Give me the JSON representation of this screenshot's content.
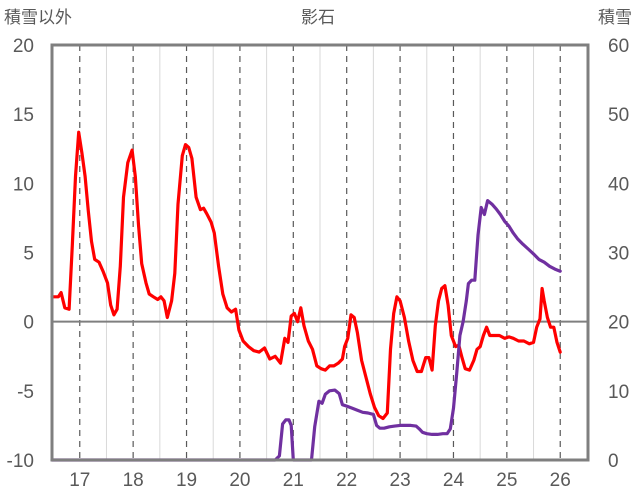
{
  "chart_data": {
    "type": "line",
    "title": "影石",
    "ylabel_left": "積雪以外",
    "ylabel_right": "積雪",
    "x_ticks": [
      "17",
      "18",
      "19",
      "20",
      "21",
      "22",
      "23",
      "24",
      "25",
      "26"
    ],
    "xlim": [
      16.48,
      26.52
    ],
    "ylim_left": [
      -10,
      20
    ],
    "ylim_right": [
      0,
      60
    ],
    "y_ticks_left": [
      "20",
      "15",
      "10",
      "5",
      "0",
      "-5",
      "-10"
    ],
    "y_ticks_right": [
      "60",
      "50",
      "40",
      "30",
      "20",
      "10",
      "0"
    ],
    "grid": "dashed vertical at each day",
    "zero_line_left": 0,
    "series": [
      {
        "axis": "left",
        "color": "#ff0000",
        "points": [
          [
            16.48,
            1.8
          ],
          [
            16.6,
            1.8
          ],
          [
            16.65,
            2.1
          ],
          [
            16.72,
            1.0
          ],
          [
            16.8,
            0.9
          ],
          [
            16.86,
            5.5
          ],
          [
            16.92,
            10.5
          ],
          [
            16.98,
            13.7
          ],
          [
            17.04,
            12.2
          ],
          [
            17.1,
            10.5
          ],
          [
            17.16,
            8.0
          ],
          [
            17.22,
            5.8
          ],
          [
            17.28,
            4.5
          ],
          [
            17.36,
            4.3
          ],
          [
            17.44,
            3.6
          ],
          [
            17.52,
            2.8
          ],
          [
            17.58,
            1.2
          ],
          [
            17.64,
            0.5
          ],
          [
            17.7,
            0.9
          ],
          [
            17.76,
            4.0
          ],
          [
            17.82,
            9.0
          ],
          [
            17.9,
            11.5
          ],
          [
            17.98,
            12.4
          ],
          [
            18.04,
            10.5
          ],
          [
            18.1,
            7.0
          ],
          [
            18.16,
            4.2
          ],
          [
            18.24,
            2.8
          ],
          [
            18.3,
            2.0
          ],
          [
            18.38,
            1.8
          ],
          [
            18.46,
            1.6
          ],
          [
            18.52,
            1.8
          ],
          [
            18.58,
            1.5
          ],
          [
            18.64,
            0.3
          ],
          [
            18.72,
            1.5
          ],
          [
            18.78,
            3.5
          ],
          [
            18.84,
            8.5
          ],
          [
            18.92,
            12.0
          ],
          [
            18.98,
            12.8
          ],
          [
            19.04,
            12.6
          ],
          [
            19.1,
            11.8
          ],
          [
            19.18,
            9.0
          ],
          [
            19.26,
            8.1
          ],
          [
            19.32,
            8.2
          ],
          [
            19.38,
            7.8
          ],
          [
            19.46,
            7.2
          ],
          [
            19.52,
            6.4
          ],
          [
            19.6,
            4.0
          ],
          [
            19.68,
            2.0
          ],
          [
            19.76,
            1.0
          ],
          [
            19.84,
            0.7
          ],
          [
            19.92,
            0.9
          ],
          [
            19.98,
            -0.6
          ],
          [
            20.06,
            -1.4
          ],
          [
            20.16,
            -1.8
          ],
          [
            20.26,
            -2.1
          ],
          [
            20.36,
            -2.2
          ],
          [
            20.46,
            -1.9
          ],
          [
            20.56,
            -2.7
          ],
          [
            20.66,
            -2.5
          ],
          [
            20.76,
            -3.0
          ],
          [
            20.84,
            -1.2
          ],
          [
            20.9,
            -1.5
          ],
          [
            20.96,
            0.4
          ],
          [
            21.02,
            0.6
          ],
          [
            21.08,
            0.0
          ],
          [
            21.14,
            1.0
          ],
          [
            21.2,
            -0.3
          ],
          [
            21.28,
            -1.4
          ],
          [
            21.36,
            -2.0
          ],
          [
            21.44,
            -3.2
          ],
          [
            21.52,
            -3.4
          ],
          [
            21.6,
            -3.5
          ],
          [
            21.68,
            -3.2
          ],
          [
            21.76,
            -3.2
          ],
          [
            21.84,
            -3.0
          ],
          [
            21.92,
            -2.7
          ],
          [
            21.96,
            -1.8
          ],
          [
            22.02,
            -1.2
          ],
          [
            22.08,
            0.5
          ],
          [
            22.14,
            0.3
          ],
          [
            22.2,
            -0.8
          ],
          [
            22.28,
            -2.8
          ],
          [
            22.36,
            -4.0
          ],
          [
            22.44,
            -5.2
          ],
          [
            22.52,
            -6.2
          ],
          [
            22.6,
            -6.8
          ],
          [
            22.68,
            -7.0
          ],
          [
            22.76,
            -6.6
          ],
          [
            22.82,
            -2.0
          ],
          [
            22.88,
            0.6
          ],
          [
            22.94,
            1.8
          ],
          [
            23.0,
            1.5
          ],
          [
            23.08,
            0.3
          ],
          [
            23.16,
            -1.4
          ],
          [
            23.24,
            -2.8
          ],
          [
            23.32,
            -3.6
          ],
          [
            23.4,
            -3.6
          ],
          [
            23.48,
            -2.6
          ],
          [
            23.54,
            -2.6
          ],
          [
            23.6,
            -3.5
          ],
          [
            23.66,
            -0.3
          ],
          [
            23.72,
            1.5
          ],
          [
            23.78,
            2.4
          ],
          [
            23.84,
            2.6
          ],
          [
            23.9,
            1.2
          ],
          [
            23.96,
            -1.0
          ],
          [
            24.04,
            -1.8
          ],
          [
            24.1,
            -1.7
          ],
          [
            24.16,
            -2.6
          ],
          [
            24.22,
            -3.4
          ],
          [
            24.3,
            -3.5
          ],
          [
            24.38,
            -2.8
          ],
          [
            24.44,
            -2.0
          ],
          [
            24.5,
            -1.8
          ],
          [
            24.56,
            -1.0
          ],
          [
            24.62,
            -0.4
          ],
          [
            24.68,
            -1.0
          ],
          [
            24.76,
            -1.0
          ],
          [
            24.86,
            -1.0
          ],
          [
            24.96,
            -1.2
          ],
          [
            25.04,
            -1.1
          ],
          [
            25.12,
            -1.2
          ],
          [
            25.22,
            -1.4
          ],
          [
            25.32,
            -1.4
          ],
          [
            25.42,
            -1.6
          ],
          [
            25.5,
            -1.5
          ],
          [
            25.56,
            -0.4
          ],
          [
            25.62,
            0.2
          ],
          [
            25.66,
            2.4
          ],
          [
            25.7,
            1.5
          ],
          [
            25.76,
            0.3
          ],
          [
            25.82,
            -0.4
          ],
          [
            25.88,
            -0.4
          ],
          [
            25.94,
            -1.5
          ],
          [
            26.0,
            -2.2
          ]
        ]
      },
      {
        "axis": "right",
        "color": "#7030a0",
        "points": [
          [
            16.48,
            0.0
          ],
          [
            20.4,
            0.0
          ],
          [
            20.66,
            0.0
          ],
          [
            20.74,
            0.6
          ],
          [
            20.8,
            5.2
          ],
          [
            20.86,
            5.8
          ],
          [
            20.92,
            5.8
          ],
          [
            20.96,
            5.0
          ],
          [
            21.0,
            0.0
          ],
          [
            21.34,
            0.0
          ],
          [
            21.4,
            4.8
          ],
          [
            21.48,
            8.5
          ],
          [
            21.54,
            8.2
          ],
          [
            21.6,
            9.5
          ],
          [
            21.68,
            10.0
          ],
          [
            21.78,
            10.1
          ],
          [
            21.86,
            9.6
          ],
          [
            21.92,
            8.0
          ],
          [
            22.0,
            7.8
          ],
          [
            22.1,
            7.5
          ],
          [
            22.2,
            7.2
          ],
          [
            22.3,
            6.9
          ],
          [
            22.4,
            6.8
          ],
          [
            22.5,
            6.6
          ],
          [
            22.56,
            5.0
          ],
          [
            22.62,
            4.6
          ],
          [
            22.7,
            4.6
          ],
          [
            22.8,
            4.8
          ],
          [
            22.9,
            4.9
          ],
          [
            23.0,
            5.0
          ],
          [
            23.1,
            5.0
          ],
          [
            23.2,
            5.0
          ],
          [
            23.3,
            4.9
          ],
          [
            23.36,
            4.5
          ],
          [
            23.42,
            4.0
          ],
          [
            23.5,
            3.8
          ],
          [
            23.6,
            3.7
          ],
          [
            23.7,
            3.7
          ],
          [
            23.8,
            3.8
          ],
          [
            23.88,
            3.8
          ],
          [
            23.94,
            4.5
          ],
          [
            24.0,
            7.5
          ],
          [
            24.06,
            12.5
          ],
          [
            24.12,
            18.0
          ],
          [
            24.18,
            20.0
          ],
          [
            24.24,
            23.0
          ],
          [
            24.28,
            25.5
          ],
          [
            24.34,
            26.0
          ],
          [
            24.4,
            26.0
          ],
          [
            24.46,
            32.5
          ],
          [
            24.52,
            36.5
          ],
          [
            24.58,
            35.5
          ],
          [
            24.64,
            37.5
          ],
          [
            24.72,
            37.0
          ],
          [
            24.8,
            36.3
          ],
          [
            24.88,
            35.5
          ],
          [
            24.96,
            34.5
          ],
          [
            25.04,
            33.8
          ],
          [
            25.12,
            32.8
          ],
          [
            25.2,
            32.0
          ],
          [
            25.3,
            31.2
          ],
          [
            25.4,
            30.5
          ],
          [
            25.5,
            29.8
          ],
          [
            25.6,
            29.0
          ],
          [
            25.7,
            28.6
          ],
          [
            25.8,
            28.0
          ],
          [
            25.9,
            27.6
          ],
          [
            26.0,
            27.3
          ]
        ]
      }
    ]
  }
}
